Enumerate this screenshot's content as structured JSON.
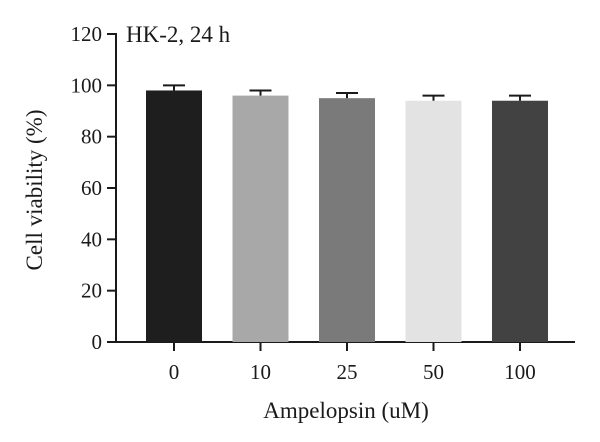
{
  "chart_data": {
    "type": "bar",
    "annotation": "HK-2, 24 h",
    "xlabel": "Ampelopsin (uM)",
    "ylabel": "Cell viability (%)",
    "categories": [
      "0",
      "10",
      "25",
      "50",
      "100"
    ],
    "values": [
      98,
      96,
      95,
      94,
      94
    ],
    "errors": [
      2,
      2,
      2,
      2,
      2
    ],
    "bar_colors": [
      "#1e1e1e",
      "#a8a8a8",
      "#7a7a7a",
      "#e3e3e3",
      "#424242"
    ],
    "ylim": [
      0,
      120
    ],
    "yticks": [
      0,
      20,
      40,
      60,
      80,
      100,
      120
    ],
    "grid": false,
    "legend": "none"
  }
}
